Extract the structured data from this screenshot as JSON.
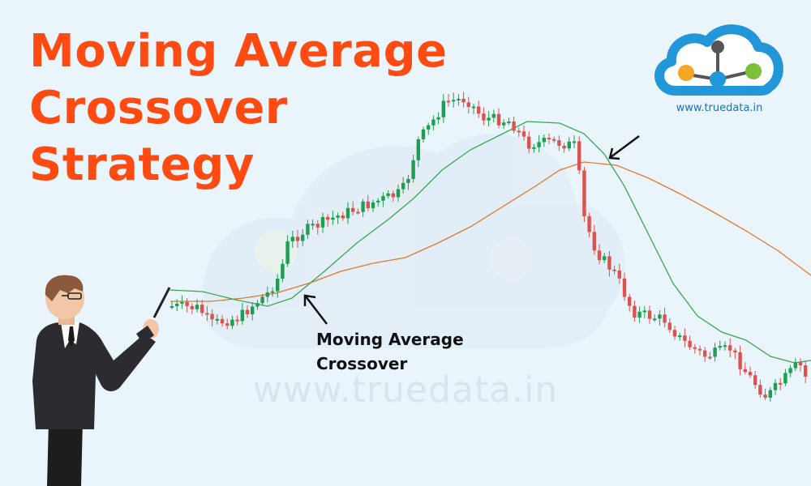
{
  "title": {
    "line1": "Moving Average",
    "line2": "Crossover",
    "line3": "Strategy"
  },
  "logo": {
    "url": "www.truedata.in"
  },
  "watermark": "www.truedata.in",
  "annotation": {
    "line1": "Moving Average",
    "line2": "Crossover"
  },
  "colors": {
    "title": "#ff4a12",
    "bullish_candle": "#1e9e52",
    "bearish_candle": "#d9534f",
    "fast_ma": "#3aa655",
    "slow_ma": "#e07a2e",
    "logo_blue": "#2196d8",
    "logo_orange": "#f5a623",
    "logo_green": "#7bbf3a",
    "logo_grey": "#555555"
  }
}
